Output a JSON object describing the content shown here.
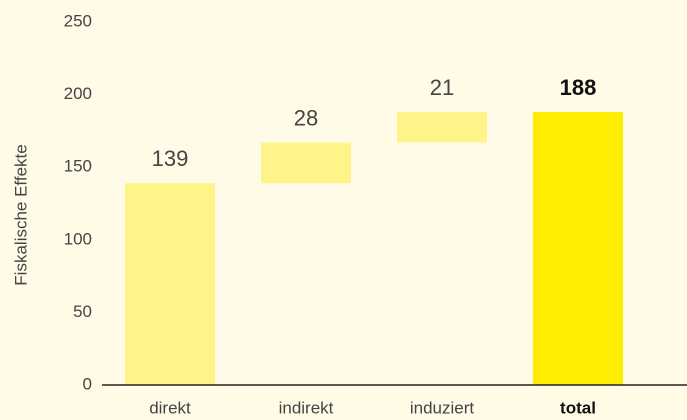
{
  "chart_data": {
    "type": "waterfall",
    "ylabel": "Fiskalische Effekte",
    "categories": [
      "direkt",
      "indirekt",
      "induziert",
      "total"
    ],
    "values": [
      139,
      28,
      21,
      188
    ],
    "measures": [
      "relative",
      "relative",
      "relative",
      "total"
    ],
    "colors": [
      "#fff48a",
      "#fff48a",
      "#fff48a",
      "#ffed00"
    ],
    "ylim": [
      0,
      250
    ],
    "yticks": [
      0,
      50,
      100,
      150,
      200,
      250
    ],
    "grid": false
  }
}
